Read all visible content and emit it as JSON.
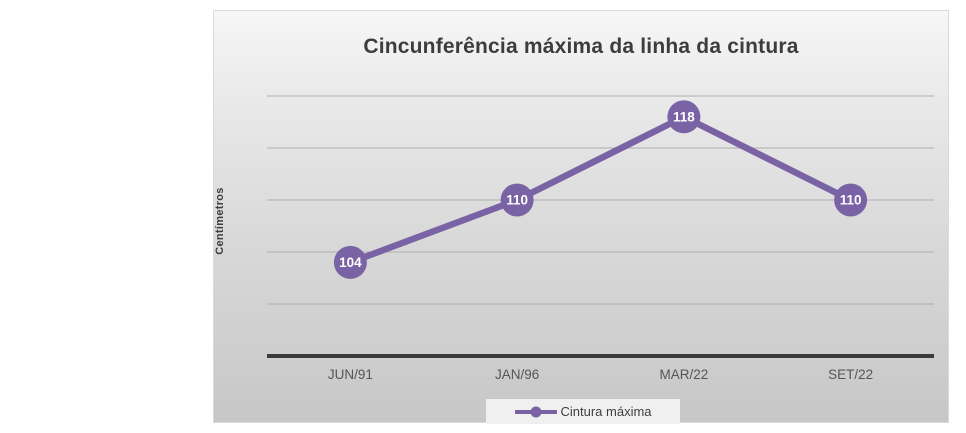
{
  "chart": {
    "title": "Cincunferência máxima da linha da cintura",
    "y_axis_label": "Centímetros",
    "legend": {
      "label": "Cintura máxima"
    },
    "colors": {
      "series_line": "#7a63a5",
      "marker_fill": "#7a63a5",
      "data_label_text": "#ffffff",
      "title_text": "#3d3d3d",
      "axis_tick_text": "#565656",
      "gridline": "#aeaeae",
      "axis_line": "#3a3a3a",
      "legend_text": "#3f3f3f",
      "legend_background": "#f0f0f0"
    }
  },
  "chart_data": {
    "type": "line",
    "title": "Cincunferência máxima da linha da cintura",
    "xlabel": "",
    "ylabel": "Centímetros",
    "categories": [
      "JUN/91",
      "JAN/96",
      "MAR/22",
      "SET/22"
    ],
    "series": [
      {
        "name": "Cintura máxima",
        "values": [
          104,
          110,
          118,
          110
        ]
      }
    ],
    "data_labels": [
      104,
      110,
      118,
      110
    ],
    "ylim": [
      95,
      125
    ],
    "gridline_values": [
      100,
      105,
      110,
      115,
      120
    ],
    "grid": true,
    "legend_position": "bottom",
    "marker": "circle"
  }
}
